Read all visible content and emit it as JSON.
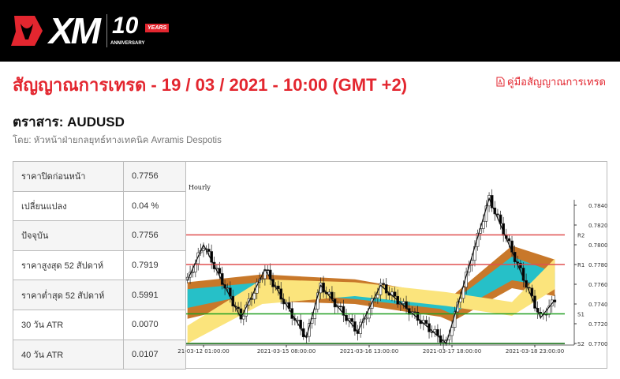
{
  "header": {
    "logo_text": "XM",
    "anniversary_number": "10",
    "anniversary_years": "YEARS",
    "anniversary_label": "ANNIVERSARY"
  },
  "title": "สัญญาณการเทรด - 19 / 03 / 2021 - 10:00 (GMT +2)",
  "guide_link": {
    "icon": "pdf-icon",
    "label": "คู่มือสัญญาณการเทรด"
  },
  "instrument": "ตราสาร: AUDUSD",
  "author": "โดย: หัวหน้าฝ่ายกลยุทธ์ทางเทคนิค Avramis Despotis",
  "stats": [
    {
      "label": "ราคาปิดก่อนหน้า",
      "value": "0.7756"
    },
    {
      "label": "เปลี่ยนแปลง",
      "value": "0.04 %"
    },
    {
      "label": "ปัจจุบัน",
      "value": "0.7756"
    },
    {
      "label": "ราคาสูงสุด 52 สัปดาห์",
      "value": "0.7919"
    },
    {
      "label": "ราคาต่ำสุด 52 สัปดาห์",
      "value": "0.5991"
    },
    {
      "label": "30 วัน ATR",
      "value": "0.0070"
    },
    {
      "label": "40 วัน ATR",
      "value": "0.0107"
    }
  ],
  "chart_data": {
    "type": "candlestick",
    "title": "Hourly",
    "ylim": [
      0.7697,
      0.7854
    ],
    "y_ticks": [
      "0.7700",
      "0.7720",
      "0.7740",
      "0.7760",
      "0.7780",
      "0.7800",
      "0.7820",
      "0.7840"
    ],
    "x_ticks": [
      "2021-03-12 01:00:00",
      "2021-03-15 08:00:00",
      "2021-03-16 13:00:00",
      "2021-03-17 18:00:00",
      "2021-03-18 23:00:00"
    ],
    "x_ticks_display": [
      "21-03-12 01:00:00",
      "2021-03-15 08:00:00",
      "2021-03-16 13:00:00",
      "2021-03-17 18:00:00",
      "2021-03-18 23:00:00"
    ],
    "levels": [
      {
        "name": "R2",
        "value": 0.781,
        "color": "#e05050"
      },
      {
        "name": "R1",
        "value": 0.778,
        "color": "#e05050"
      },
      {
        "name": "S1",
        "value": 0.773,
        "color": "#22a022"
      },
      {
        "name": "S2",
        "value": 0.77,
        "color": "#0a6a0a"
      }
    ],
    "zigzag": [
      [
        "2021-03-11 19:00",
        0.7764
      ],
      [
        "2021-03-12 01:00",
        0.78
      ],
      [
        "2021-03-12 15:00",
        0.7726
      ],
      [
        "2021-03-15 00:00",
        0.7775
      ],
      [
        "2021-03-15 15:00",
        0.7706
      ],
      [
        "2021-03-15 20:00",
        0.7759
      ],
      [
        "2021-03-16 09:00",
        0.7712
      ],
      [
        "2021-03-16 17:00",
        0.7759
      ],
      [
        "2021-03-17 16:00",
        0.77
      ],
      [
        "2021-03-18 07:00",
        0.7847
      ],
      [
        "2021-03-19 01:00",
        0.7726
      ],
      [
        "2021-03-19 06:00",
        0.7744
      ]
    ],
    "bands": [
      {
        "color": "#c8782a",
        "points": [
          [
            "2021-03-11 19:00",
            0.7725,
            0.7762
          ],
          [
            "2021-03-12 23:00",
            0.7743,
            0.777
          ],
          [
            "2021-03-16 08:00",
            0.774,
            0.7765
          ],
          [
            "2021-03-17 14:00",
            0.7727,
            0.775
          ],
          [
            "2021-03-17 18:00",
            0.7722,
            0.7748
          ],
          [
            "2021-03-18 15:00",
            0.7756,
            0.7799
          ],
          [
            "2021-03-19 06:00",
            0.7748,
            0.7785
          ]
        ]
      },
      {
        "color": "#26c0c8",
        "points": [
          [
            "2021-03-11 19:00",
            0.7736,
            0.7755
          ],
          [
            "2021-03-12 23:00",
            0.7752,
            0.7762
          ],
          [
            "2021-03-16 08:00",
            0.7745,
            0.7755
          ],
          [
            "2021-03-17 14:00",
            0.7735,
            0.7745
          ],
          [
            "2021-03-17 18:00",
            0.773,
            0.7742
          ],
          [
            "2021-03-18 15:00",
            0.7764,
            0.7788
          ],
          [
            "2021-03-19 06:00",
            0.7757,
            0.7772
          ]
        ]
      },
      {
        "color": "#fbe47c",
        "points": [
          [
            "2021-03-11 19:00",
            0.77,
            0.7718
          ],
          [
            "2021-03-12 23:00",
            0.774,
            0.7765
          ],
          [
            "2021-03-16 08:00",
            0.7748,
            0.7762
          ],
          [
            "2021-03-17 16:00",
            0.7738,
            0.7752
          ],
          [
            "2021-03-18 15:00",
            0.7728,
            0.7742
          ],
          [
            "2021-03-19 06:00",
            0.7755,
            0.7786
          ]
        ]
      }
    ]
  }
}
